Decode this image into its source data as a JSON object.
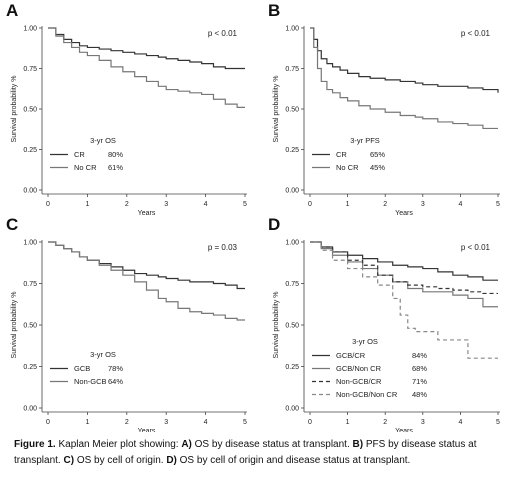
{
  "chart_data": [
    {
      "type": "line",
      "panel_letter": "A",
      "pvalue": "p < 0.01",
      "xlabel": "Years",
      "ylabel": "Survival probability %",
      "xlim": [
        0,
        5
      ],
      "ylim": [
        0,
        1
      ],
      "xticks": [
        "0",
        "1",
        "2",
        "3",
        "4",
        "5"
      ],
      "yticks": [
        "0.00",
        "0.25",
        "0.50",
        "0.75",
        "1.00"
      ],
      "legend_title": "3-yr OS",
      "legend_placement": "bottom-left",
      "series": [
        {
          "name": "CR",
          "stat": "80%",
          "color": "#333333",
          "dash": "solid",
          "x": [
            0,
            0.2,
            0.4,
            0.6,
            0.8,
            1.0,
            1.3,
            1.6,
            1.9,
            2.2,
            2.5,
            2.8,
            3.0,
            3.3,
            3.6,
            3.9,
            4.2,
            4.5,
            4.8,
            5.0
          ],
          "y": [
            1.0,
            0.96,
            0.93,
            0.91,
            0.89,
            0.88,
            0.87,
            0.86,
            0.85,
            0.84,
            0.83,
            0.82,
            0.81,
            0.8,
            0.79,
            0.78,
            0.76,
            0.75,
            0.75,
            0.75
          ]
        },
        {
          "name": "No CR",
          "stat": "61%",
          "color": "#777777",
          "dash": "solid",
          "x": [
            0,
            0.2,
            0.4,
            0.6,
            0.8,
            1.0,
            1.3,
            1.6,
            1.9,
            2.2,
            2.5,
            2.8,
            3.0,
            3.3,
            3.6,
            3.9,
            4.2,
            4.5,
            4.8,
            5.0
          ],
          "y": [
            1.0,
            0.95,
            0.91,
            0.88,
            0.85,
            0.83,
            0.8,
            0.76,
            0.73,
            0.7,
            0.67,
            0.64,
            0.62,
            0.61,
            0.6,
            0.59,
            0.56,
            0.53,
            0.51,
            0.51
          ]
        }
      ]
    },
    {
      "type": "line",
      "panel_letter": "B",
      "pvalue": "p < 0.01",
      "xlabel": "Years",
      "ylabel": "Survival probability %",
      "xlim": [
        0,
        5
      ],
      "ylim": [
        0,
        1
      ],
      "xticks": [
        "0",
        "1",
        "2",
        "3",
        "4",
        "5"
      ],
      "yticks": [
        "0.00",
        "0.25",
        "0.50",
        "0.75",
        "1.00"
      ],
      "legend_title": "3-yr PFS",
      "legend_placement": "bottom-left",
      "series": [
        {
          "name": "CR",
          "stat": "65%",
          "color": "#333333",
          "dash": "solid",
          "x": [
            0,
            0.1,
            0.2,
            0.3,
            0.45,
            0.6,
            0.8,
            1.0,
            1.3,
            1.6,
            2.0,
            2.4,
            2.8,
            3.0,
            3.4,
            3.8,
            4.2,
            4.6,
            5.0
          ],
          "y": [
            1.0,
            0.93,
            0.86,
            0.81,
            0.78,
            0.76,
            0.74,
            0.72,
            0.7,
            0.69,
            0.68,
            0.67,
            0.66,
            0.65,
            0.64,
            0.64,
            0.63,
            0.62,
            0.6
          ]
        },
        {
          "name": "No CR",
          "stat": "45%",
          "color": "#777777",
          "dash": "solid",
          "x": [
            0,
            0.1,
            0.2,
            0.3,
            0.45,
            0.6,
            0.8,
            1.0,
            1.3,
            1.6,
            2.0,
            2.4,
            2.8,
            3.0,
            3.4,
            3.8,
            4.2,
            4.6,
            5.0
          ],
          "y": [
            1.0,
            0.88,
            0.75,
            0.67,
            0.62,
            0.6,
            0.57,
            0.55,
            0.52,
            0.5,
            0.48,
            0.46,
            0.45,
            0.44,
            0.42,
            0.41,
            0.4,
            0.38,
            0.38
          ]
        }
      ]
    },
    {
      "type": "line",
      "panel_letter": "C",
      "pvalue": "p = 0.03",
      "xlabel": "Years",
      "ylabel": "Survival probability %",
      "xlim": [
        0,
        5
      ],
      "ylim": [
        0,
        1
      ],
      "xticks": [
        "0",
        "1",
        "2",
        "3",
        "4",
        "5"
      ],
      "yticks": [
        "0.00",
        "0.25",
        "0.50",
        "0.75",
        "1.00"
      ],
      "legend_title": "3-yr OS",
      "legend_placement": "bottom-left",
      "series": [
        {
          "name": "GCB",
          "stat": "78%",
          "color": "#333333",
          "dash": "solid",
          "x": [
            0,
            0.2,
            0.4,
            0.6,
            0.8,
            1.0,
            1.3,
            1.6,
            1.9,
            2.2,
            2.5,
            2.8,
            3.0,
            3.3,
            3.6,
            3.9,
            4.2,
            4.5,
            4.8,
            5.0
          ],
          "y": [
            1.0,
            0.98,
            0.96,
            0.94,
            0.91,
            0.89,
            0.87,
            0.85,
            0.83,
            0.81,
            0.8,
            0.79,
            0.78,
            0.77,
            0.76,
            0.76,
            0.75,
            0.74,
            0.72,
            0.72
          ]
        },
        {
          "name": "Non-GCB",
          "stat": "64%",
          "color": "#777777",
          "dash": "solid",
          "x": [
            0,
            0.2,
            0.4,
            0.6,
            0.8,
            1.0,
            1.3,
            1.6,
            1.9,
            2.2,
            2.5,
            2.8,
            3.0,
            3.3,
            3.6,
            3.9,
            4.2,
            4.5,
            4.8,
            5.0
          ],
          "y": [
            1.0,
            0.98,
            0.96,
            0.94,
            0.91,
            0.89,
            0.86,
            0.83,
            0.8,
            0.76,
            0.71,
            0.66,
            0.64,
            0.6,
            0.58,
            0.57,
            0.56,
            0.54,
            0.53,
            0.53
          ]
        }
      ]
    },
    {
      "type": "line",
      "panel_letter": "D",
      "pvalue": "p < 0.01",
      "xlabel": "Years",
      "ylabel": "Survival probability %",
      "xlim": [
        0,
        5
      ],
      "ylim": [
        0,
        1
      ],
      "xticks": [
        "0",
        "1",
        "2",
        "3",
        "4",
        "5"
      ],
      "yticks": [
        "0.00",
        "0.25",
        "0.50",
        "0.75",
        "1.00"
      ],
      "legend_title": "3-yr OS",
      "legend_placement": "bottom-left",
      "series": [
        {
          "name": "GCB/CR",
          "stat": "84%",
          "color": "#333333",
          "dash": "solid",
          "x": [
            0,
            0.3,
            0.6,
            1.0,
            1.4,
            1.8,
            2.2,
            2.6,
            3.0,
            3.4,
            3.8,
            4.2,
            4.6,
            5.0
          ],
          "y": [
            1.0,
            0.97,
            0.94,
            0.92,
            0.9,
            0.88,
            0.86,
            0.85,
            0.84,
            0.82,
            0.8,
            0.79,
            0.77,
            0.77
          ]
        },
        {
          "name": "GCB/Non CR",
          "stat": "68%",
          "color": "#777777",
          "dash": "solid",
          "x": [
            0,
            0.3,
            0.6,
            1.0,
            1.4,
            1.8,
            2.2,
            2.6,
            3.0,
            3.4,
            3.8,
            4.2,
            4.6,
            5.0
          ],
          "y": [
            1.0,
            0.96,
            0.92,
            0.88,
            0.84,
            0.8,
            0.76,
            0.72,
            0.7,
            0.7,
            0.68,
            0.66,
            0.61,
            0.61
          ]
        },
        {
          "name": "Non-GCB/CR",
          "stat": "71%",
          "color": "#333333",
          "dash": "dashed",
          "x": [
            0,
            0.3,
            0.6,
            1.0,
            1.4,
            1.8,
            2.2,
            2.6,
            3.0,
            3.4,
            3.8,
            4.2,
            4.6,
            5.0
          ],
          "y": [
            1.0,
            0.97,
            0.94,
            0.89,
            0.86,
            0.8,
            0.76,
            0.74,
            0.73,
            0.72,
            0.71,
            0.7,
            0.69,
            0.69
          ]
        },
        {
          "name": "Non-GCB/Non CR",
          "stat": "48%",
          "color": "#888888",
          "dash": "dashed",
          "x": [
            0,
            0.3,
            0.6,
            1.0,
            1.4,
            1.8,
            2.2,
            2.4,
            2.6,
            2.8,
            3.0,
            3.4,
            3.8,
            4.2,
            4.6,
            5.0
          ],
          "y": [
            1.0,
            0.95,
            0.89,
            0.84,
            0.79,
            0.74,
            0.66,
            0.56,
            0.48,
            0.46,
            0.46,
            0.41,
            0.41,
            0.3,
            0.3,
            0.3
          ]
        }
      ]
    }
  ],
  "caption": {
    "figure_label": "Figure 1.",
    "text_intro": " Kaplan Meier plot showing: ",
    "a_label": "A)",
    "a_text": " OS by disease status at transplant. ",
    "b_label": "B)",
    "b_text": " PFS by disease status at transplant. ",
    "c_label": "C)",
    "c_text": " OS by cell of origin. ",
    "d_label": "D)",
    "d_text": " OS by cell of origin and disease status at transplant."
  }
}
